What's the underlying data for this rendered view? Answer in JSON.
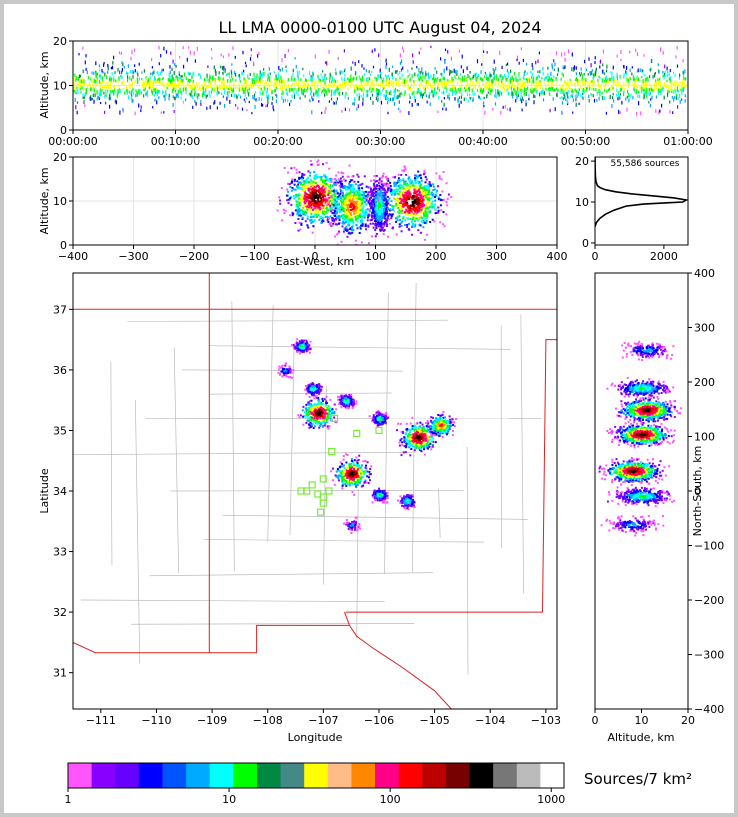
{
  "title": "LL LMA 0000-0100 UTC August 04, 2024",
  "colorbar_label": "Sources/7 km²",
  "colors": {
    "scale": [
      "#ff55ff",
      "#8800ff",
      "#6600ff",
      "#0000ff",
      "#0055ff",
      "#00aaff",
      "#00ffff",
      "#00ff00",
      "#008844",
      "#448888",
      "#ffff00",
      "#ffbb88",
      "#ff8800",
      "#ff0088",
      "#ff0000",
      "#bb0000",
      "#770000",
      "#000000",
      "#777777",
      "#bbbbbb",
      "#ffffff"
    ],
    "state_border": "#dd2222",
    "county_border": "#bbbbbb",
    "station_marker": "#77ee33"
  },
  "chart_data": [
    {
      "id": "time-height",
      "type": "heatmap",
      "xlabel": "",
      "ylabel": "Altitude, km",
      "xlim_minutes": [
        0,
        60
      ],
      "ylim": [
        0,
        20
      ],
      "x_ticks": [
        "00:00:00",
        "00:10:00",
        "00:20:00",
        "00:30:00",
        "00:40:00",
        "00:50:00",
        "01:00:00"
      ],
      "y_ticks": [
        "0",
        "10",
        "20"
      ],
      "grid": true,
      "note_layer": "sources continuous across full hour, concentrated 7-15 km"
    },
    {
      "id": "ew-altitude",
      "type": "heatmap",
      "xlabel": "East-West, km",
      "ylabel": "Altitude, km",
      "xlim": [
        -400,
        400
      ],
      "ylim": [
        0,
        20
      ],
      "x_ticks": [
        "−400",
        "−300",
        "−200",
        "−100",
        "0",
        "100",
        "200",
        "300",
        "400"
      ],
      "y_ticks": [
        "0",
        "10",
        "20"
      ],
      "grid": true,
      "clusters": [
        {
          "x": 0,
          "alt": 11,
          "intensity": 3
        },
        {
          "x": 60,
          "alt": 9,
          "intensity": 2
        },
        {
          "x": 105,
          "alt": 9,
          "intensity": 1
        },
        {
          "x": 160,
          "alt": 10,
          "intensity": 3
        }
      ]
    },
    {
      "id": "altitude-histogram",
      "type": "line",
      "annotation": "55,586 sources",
      "xlim": [
        0,
        2700
      ],
      "ylim": [
        -0.5,
        21
      ],
      "x_ticks": [
        "0",
        "2000"
      ],
      "y_ticks": [
        "0",
        "10",
        "20"
      ],
      "points": [
        [
          0,
          4
        ],
        [
          40,
          5
        ],
        [
          140,
          6
        ],
        [
          300,
          7
        ],
        [
          550,
          8
        ],
        [
          900,
          9
        ],
        [
          1400,
          9.5
        ],
        [
          2100,
          9.8
        ],
        [
          2550,
          10
        ],
        [
          2650,
          10.5
        ],
        [
          2300,
          11
        ],
        [
          1700,
          11.5
        ],
        [
          1050,
          12
        ],
        [
          600,
          12.5
        ],
        [
          300,
          13
        ],
        [
          150,
          13.5
        ],
        [
          70,
          14
        ],
        [
          30,
          15
        ],
        [
          15,
          16
        ],
        [
          8,
          17
        ],
        [
          5,
          18
        ],
        [
          3,
          19
        ],
        [
          2,
          20
        ],
        [
          2,
          21
        ]
      ]
    },
    {
      "id": "plan-view",
      "type": "heatmap",
      "xlabel": "Longitude",
      "ylabel": "Latitude",
      "xlim": [
        -111.5,
        -102.8
      ],
      "ylim": [
        30.4,
        37.6
      ],
      "x_ticks": [
        "−111",
        "−110",
        "−109",
        "−108",
        "−107",
        "−106",
        "−105",
        "−104",
        "−103"
      ],
      "y_ticks": [
        "31",
        "32",
        "33",
        "34",
        "35",
        "36",
        "37"
      ],
      "clusters": [
        {
          "lon": -107.4,
          "lat": 36.4,
          "intensity": 1
        },
        {
          "lon": -107.2,
          "lat": 35.7,
          "intensity": 1
        },
        {
          "lon": -107.1,
          "lat": 35.3,
          "intensity": 3
        },
        {
          "lon": -106.6,
          "lat": 35.5,
          "intensity": 1
        },
        {
          "lon": -106.0,
          "lat": 35.2,
          "intensity": 1
        },
        {
          "lon": -105.3,
          "lat": 34.9,
          "intensity": 3
        },
        {
          "lon": -104.9,
          "lat": 35.1,
          "intensity": 2
        },
        {
          "lon": -106.5,
          "lat": 34.3,
          "intensity": 3
        },
        {
          "lon": -106.0,
          "lat": 33.95,
          "intensity": 1
        },
        {
          "lon": -105.5,
          "lat": 33.85,
          "intensity": 1
        },
        {
          "lon": -106.5,
          "lat": 33.45,
          "intensity": 0
        },
        {
          "lon": -107.7,
          "lat": 36.0,
          "intensity": 0
        }
      ],
      "stations": [
        [
          -106.8,
          35.2
        ],
        [
          -106.4,
          34.95
        ],
        [
          -106.0,
          35.0
        ],
        [
          -106.85,
          34.65
        ],
        [
          -107.0,
          34.2
        ],
        [
          -107.2,
          34.1
        ],
        [
          -107.3,
          34.0
        ],
        [
          -107.4,
          34.0
        ],
        [
          -107.1,
          33.95
        ],
        [
          -107.0,
          33.9
        ],
        [
          -106.9,
          34.0
        ],
        [
          -107.0,
          33.8
        ],
        [
          -107.05,
          33.65
        ]
      ]
    },
    {
      "id": "altitude-ns",
      "type": "heatmap",
      "xlabel": "Altitude, km",
      "ylabel": "North-South, km",
      "xlim": [
        0,
        20
      ],
      "ylim": [
        -400,
        400
      ],
      "x_ticks": [
        "0",
        "10",
        "20"
      ],
      "y_ticks": [
        "−400",
        "−300",
        "−200",
        "−100",
        "0",
        "100",
        "200",
        "300",
        "400"
      ],
      "clusters": [
        {
          "alt": 11,
          "ns": 260,
          "intensity": 0
        },
        {
          "alt": 10,
          "ns": 190,
          "intensity": 1
        },
        {
          "alt": 11,
          "ns": 150,
          "intensity": 3
        },
        {
          "alt": 10,
          "ns": 105,
          "intensity": 3
        },
        {
          "alt": 8,
          "ns": 38,
          "intensity": 3
        },
        {
          "alt": 10,
          "ns": -8,
          "intensity": 1
        },
        {
          "alt": 8,
          "ns": -60,
          "intensity": 0
        }
      ]
    },
    {
      "id": "colorbar",
      "type": "table",
      "scale": "log",
      "range": [
        1,
        1200
      ],
      "tick_labels": [
        "1",
        "10",
        "100",
        "1000"
      ]
    }
  ]
}
